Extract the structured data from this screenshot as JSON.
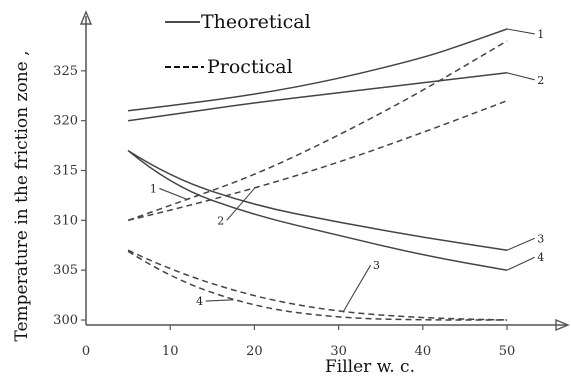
{
  "chart_data": {
    "type": "line",
    "x_ticks": [
      "0",
      "10",
      "20",
      "30",
      "40",
      "50"
    ],
    "y_ticks": [
      "300",
      "305",
      "310",
      "315",
      "320",
      "325"
    ],
    "xlabel": "Filler   w.  c.",
    "ylabel": "Temperature in the friction zone ,",
    "xlim": [
      0,
      57
    ],
    "ylim": [
      299.5,
      330.5
    ],
    "legend": [
      {
        "label": "Theoretical",
        "style": "solid"
      },
      {
        "label": "Proctical",
        "style": "dashed"
      }
    ],
    "series": [
      {
        "label": "1",
        "style": "solid",
        "x": [
          5,
          10,
          20,
          30,
          40,
          45,
          50
        ],
        "y": [
          321,
          321.5,
          322.6,
          324.2,
          326.3,
          327.7,
          329.2
        ]
      },
      {
        "label": "2",
        "style": "solid",
        "x": [
          5,
          10,
          20,
          30,
          40,
          50
        ],
        "y": [
          320,
          320.6,
          321.8,
          322.8,
          323.8,
          324.8
        ]
      },
      {
        "label": "3",
        "style": "solid",
        "x": [
          5,
          10,
          20,
          30,
          40,
          50
        ],
        "y": [
          317,
          314.3,
          311.5,
          309.8,
          308.3,
          307
        ]
      },
      {
        "label": "4",
        "style": "solid",
        "x": [
          5,
          10,
          20,
          30,
          40,
          50
        ],
        "y": [
          317,
          313.5,
          310.5,
          308.5,
          306.5,
          305
        ]
      },
      {
        "label": "1",
        "style": "dashed",
        "x": [
          5,
          10,
          20,
          30,
          40,
          50
        ],
        "y": [
          310,
          311.5,
          314.5,
          318.5,
          323,
          328
        ]
      },
      {
        "label": "2",
        "style": "dashed",
        "x": [
          5,
          10,
          20,
          30,
          40,
          50
        ],
        "y": [
          310,
          311,
          313.2,
          315.8,
          318.8,
          322
        ]
      },
      {
        "label": "3",
        "style": "dashed",
        "x": [
          5,
          10,
          20,
          30,
          40,
          50
        ],
        "y": [
          307,
          305,
          302.3,
          300.8,
          300.2,
          300
        ]
      },
      {
        "label": "4",
        "style": "dashed",
        "x": [
          5,
          10,
          20,
          30,
          40,
          50
        ],
        "y": [
          306.9,
          304.2,
          301.3,
          300.2,
          300,
          300
        ]
      }
    ],
    "curve_labels": [
      {
        "text": "1",
        "x": 54,
        "y": 328.3
      },
      {
        "text": "2",
        "x": 54,
        "y": 323.7
      },
      {
        "text": "3",
        "x": 54,
        "y": 307.8
      },
      {
        "text": "4",
        "x": 54,
        "y": 305.9
      },
      {
        "text": "1",
        "x": 8,
        "y": 312.8
      },
      {
        "text": "2",
        "x": 16,
        "y": 309.6
      },
      {
        "text": "3",
        "x": 34.5,
        "y": 305.1
      },
      {
        "text": "4",
        "x": 13.5,
        "y": 301.5
      }
    ],
    "grid": false
  }
}
